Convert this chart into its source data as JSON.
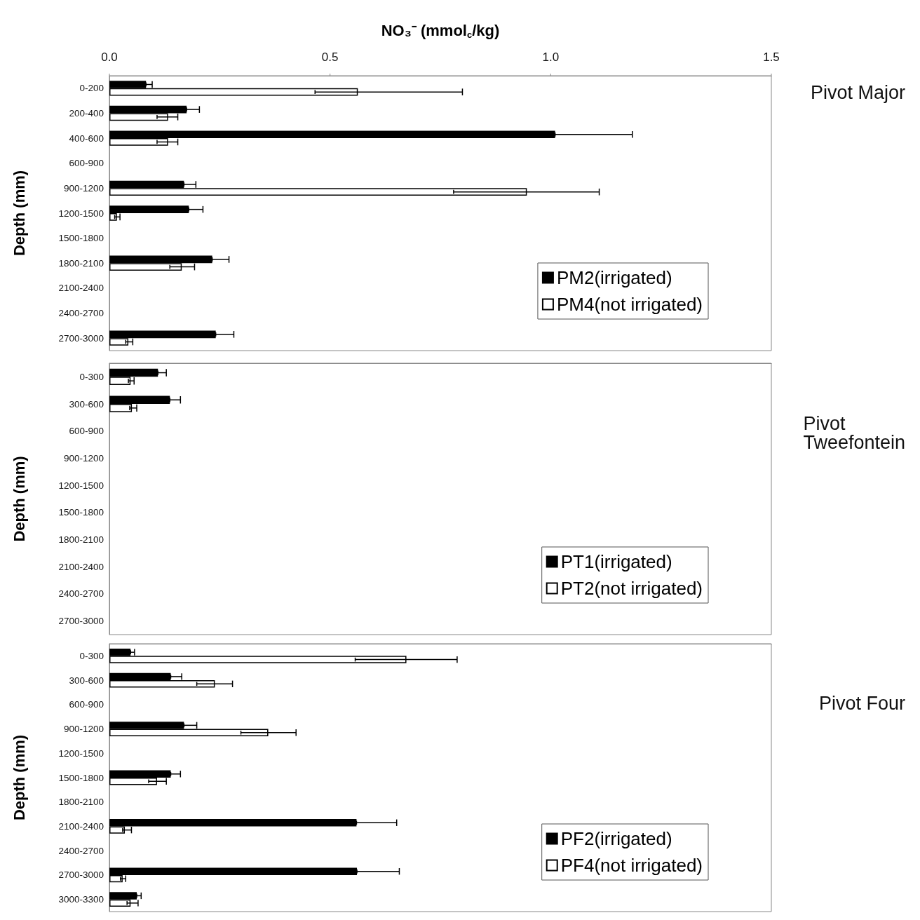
{
  "chart_data": [
    {
      "type": "bar",
      "orientation": "horizontal",
      "annotations": [
        "Pivot Major"
      ],
      "xlabel": "NO₃⁻ (mmol$_{c}$/kg)",
      "ylabel": "Depth (mm)",
      "categories": [
        "0-200",
        "200-400",
        "400-600",
        "600-900",
        "900-1200",
        "1200-1500",
        "1500-1800",
        "1800-2100",
        "2100-2400",
        "2400-2700",
        "2700-3000"
      ],
      "series": [
        {
          "name": "PM2(irrigated)",
          "color": "#000000",
          "values": [
            0.083,
            0.175,
            1.01,
            null,
            0.169,
            0.18,
            null,
            0.233,
            null,
            null,
            0.241
          ],
          "errors": [
            [
              0.083,
              0.097
            ],
            [
              0.175,
              0.204
            ],
            [
              1.01,
              1.185
            ],
            null,
            [
              0.169,
              0.196
            ],
            [
              0.18,
              0.212
            ],
            null,
            [
              0.233,
              0.271
            ],
            null,
            null,
            [
              0.241,
              0.282
            ]
          ]
        },
        {
          "name": "PM4(not irrigated)",
          "color": "#ffffff",
          "values": [
            0.563,
            0.133,
            0.133,
            null,
            0.946,
            0.017,
            null,
            0.164,
            null,
            null,
            0.043
          ],
          "errors": [
            [
              0.466,
              0.8
            ],
            [
              0.108,
              0.155
            ],
            [
              0.108,
              0.155
            ],
            null,
            [
              0.78,
              1.11
            ],
            [
              0.012,
              0.024
            ],
            null,
            [
              0.137,
              0.193
            ],
            null,
            null,
            [
              0.037,
              0.053
            ]
          ]
        }
      ],
      "xlim": [
        0,
        1.5
      ],
      "xticks": [
        {
          "value": 0,
          "label": "0.0"
        },
        0.5,
        {
          "value": 1,
          "label": "1.0"
        },
        1.5
      ],
      "legend": "bottom right",
      "grid": false
    },
    {
      "type": "bar",
      "orientation": "horizontal",
      "annotations": [
        "Pivot Tweefontein"
      ],
      "ylabel": "Depth (mm)",
      "categories": [
        "0-300",
        "300-600",
        "600-900",
        "900-1200",
        "1200-1500",
        "1500-1800",
        "1800-2100",
        "2100-2400",
        "2400-2700",
        "2700-3000"
      ],
      "series": [
        {
          "name": "PT1(irrigated)",
          "color": "#000000",
          "values": [
            0.11,
            0.137,
            null,
            null,
            null,
            null,
            null,
            null,
            null,
            null
          ],
          "errors": [
            [
              0.11,
              0.129
            ],
            [
              0.137,
              0.161
            ],
            null,
            null,
            null,
            null,
            null,
            null,
            null,
            null
          ]
        },
        {
          "name": "PT2(not irrigated)",
          "color": "#ffffff",
          "values": [
            0.048,
            0.051,
            null,
            null,
            null,
            null,
            null,
            null,
            null,
            null
          ],
          "errors": [
            [
              0.043,
              0.056
            ],
            [
              0.046,
              0.062
            ],
            null,
            null,
            null,
            null,
            null,
            null,
            null,
            null
          ]
        }
      ],
      "xlim": [
        0,
        1.5
      ],
      "tick_labels": "y",
      "legend": "bottom right",
      "grid": false
    },
    {
      "type": "bar",
      "orientation": "horizontal",
      "annotations": [
        "Pivot Four"
      ],
      "ylabel": "Depth (mm)",
      "categories": [
        "0-300",
        "300-600",
        "600-900",
        "900-1200",
        "1200-1500",
        "1500-1800",
        "1800-2100",
        "2100-2400",
        "2400-2700",
        "2700-3000",
        "3000-3300"
      ],
      "series": [
        {
          "name": "PF2(irrigated)",
          "color": "#000000",
          "values": [
            0.048,
            0.139,
            null,
            0.169,
            null,
            0.139,
            null,
            0.56,
            null,
            0.561,
            0.062
          ],
          "errors": [
            [
              0.048,
              0.057
            ],
            [
              0.139,
              0.164
            ],
            null,
            [
              0.169,
              0.198
            ],
            null,
            [
              0.139,
              0.161
            ],
            null,
            [
              0.56,
              0.651
            ],
            null,
            [
              0.561,
              0.657
            ],
            [
              0.062,
              0.072
            ]
          ]
        },
        {
          "name": "PF4(not irrigated)",
          "color": "#ffffff",
          "values": [
            0.673,
            0.239,
            null,
            0.36,
            null,
            0.108,
            null,
            0.035,
            null,
            0.03,
            0.048
          ],
          "errors": [
            [
              0.557,
              0.788
            ],
            [
              0.198,
              0.279
            ],
            null,
            [
              0.298,
              0.423
            ],
            null,
            [
              0.089,
              0.129
            ],
            null,
            [
              0.03,
              0.05
            ],
            null,
            [
              0.025,
              0.037
            ],
            [
              0.04,
              0.065
            ]
          ]
        }
      ],
      "xlim": [
        0,
        1.5
      ],
      "tick_labels": "y",
      "legend": "bottom right",
      "grid": false
    }
  ]
}
